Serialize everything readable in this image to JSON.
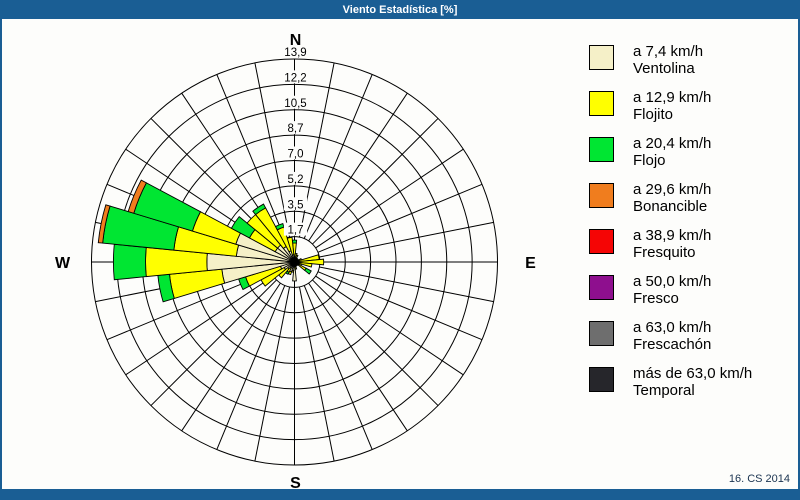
{
  "window": {
    "title": "Viento Estadística [%]",
    "footer": "16. CS 2014"
  },
  "colors": {
    "title_bar": "#1A5E94",
    "frame_border": "#1A5E94",
    "panel_background": "#FDFDFB",
    "grid_line": "#000000"
  },
  "chart_data": {
    "type": "wind-rose",
    "title": "Viento Estadística [%]",
    "units": "%",
    "rings": 8,
    "max_radius": 13.9,
    "ring_labels": [
      "1,7",
      "3,5",
      "5,2",
      "7,0",
      "8,7",
      "10,5",
      "12,2",
      "13,9"
    ],
    "sector_width_deg": 11.25,
    "compass": {
      "n": "N",
      "e": "E",
      "s": "S",
      "w": "W"
    },
    "legend_position": "right",
    "speed_classes": [
      {
        "label_speed": "a 7,4 km/h",
        "label_name": "Ventolina",
        "color": "#F5F0C8"
      },
      {
        "label_speed": "a 12,9 km/h",
        "label_name": "Flojito",
        "color": "#FFFF00"
      },
      {
        "label_speed": "a 20,4 km/h",
        "label_name": "Flojo",
        "color": "#00E632"
      },
      {
        "label_speed": "a 29,6 km/h",
        "label_name": "Bonancible",
        "color": "#F07D1E"
      },
      {
        "label_speed": "a 38,9 km/h",
        "label_name": "Fresquito",
        "color": "#F50505"
      },
      {
        "label_speed": "a 50,0 km/h",
        "label_name": "Fresco",
        "color": "#8E0F8E"
      },
      {
        "label_speed": "a 63,0 km/h",
        "label_name": "Frescachón",
        "color": "#6E6E6E"
      },
      {
        "label_speed": "más de 63,0 km/h",
        "label_name": "Temporal",
        "color": "#26262B"
      }
    ],
    "directions": [
      {
        "deg": 0,
        "values": [
          0.4,
          0.9,
          0.2,
          0
        ]
      },
      {
        "deg": 11.25,
        "values": [
          0.2,
          0.4,
          0,
          0
        ]
      },
      {
        "deg": 22.5,
        "values": [
          0.2,
          0.3,
          0,
          0
        ]
      },
      {
        "deg": 33.75,
        "values": [
          0.1,
          0.2,
          0,
          0
        ]
      },
      {
        "deg": 45,
        "values": [
          0.1,
          0.2,
          0,
          0
        ]
      },
      {
        "deg": 56.25,
        "values": [
          0.1,
          0.1,
          0,
          0
        ]
      },
      {
        "deg": 67.5,
        "values": [
          0.2,
          0.3,
          0,
          0
        ]
      },
      {
        "deg": 78.75,
        "values": [
          0.3,
          1.4,
          0,
          0
        ]
      },
      {
        "deg": 90,
        "values": [
          0.3,
          1.7,
          0,
          0
        ]
      },
      {
        "deg": 101.25,
        "values": [
          0.2,
          1.0,
          0,
          0
        ]
      },
      {
        "deg": 112.5,
        "values": [
          0.2,
          0.3,
          0,
          0
        ]
      },
      {
        "deg": 123.75,
        "values": [
          0.3,
          0.6,
          0.4,
          0
        ]
      },
      {
        "deg": 135,
        "values": [
          0.1,
          0.2,
          0,
          0
        ]
      },
      {
        "deg": 146.25,
        "values": [
          0.1,
          0.1,
          0,
          0
        ]
      },
      {
        "deg": 157.5,
        "values": [
          0.2,
          0.1,
          0,
          0
        ]
      },
      {
        "deg": 168.75,
        "values": [
          0.3,
          0.2,
          0,
          0
        ]
      },
      {
        "deg": 180,
        "values": [
          1.3,
          0,
          0,
          0
        ]
      },
      {
        "deg": 191.25,
        "values": [
          0.6,
          0.1,
          0,
          0
        ]
      },
      {
        "deg": 202.5,
        "values": [
          0.7,
          0.2,
          0,
          0
        ]
      },
      {
        "deg": 213.75,
        "values": [
          0.5,
          0.3,
          0.15,
          0
        ]
      },
      {
        "deg": 225,
        "values": [
          0.6,
          0.8,
          0,
          0
        ]
      },
      {
        "deg": 236.25,
        "values": [
          0.8,
          1.8,
          0,
          0
        ]
      },
      {
        "deg": 247.5,
        "values": [
          1.0,
          2.5,
          0.5,
          0
        ]
      },
      {
        "deg": 258.75,
        "values": [
          5.0,
          3.6,
          0.8,
          0
        ]
      },
      {
        "deg": 270,
        "values": [
          6.0,
          4.2,
          2.2,
          0
        ]
      },
      {
        "deg": 281.25,
        "values": [
          4.0,
          4.3,
          4.9,
          0.3
        ]
      },
      {
        "deg": 292.5,
        "values": [
          4.2,
          3.1,
          4.2,
          0.4
        ]
      },
      {
        "deg": 303.75,
        "values": [
          1.5,
          2.0,
          1.4,
          0
        ]
      },
      {
        "deg": 315,
        "values": [
          1.5,
          2.7,
          0,
          0
        ]
      },
      {
        "deg": 326.25,
        "values": [
          1.2,
          3.0,
          0.3,
          0
        ]
      },
      {
        "deg": 337.5,
        "values": [
          0.8,
          1.7,
          0.25,
          0
        ]
      },
      {
        "deg": 348.75,
        "values": [
          0.5,
          1.2,
          0,
          0
        ]
      }
    ]
  }
}
